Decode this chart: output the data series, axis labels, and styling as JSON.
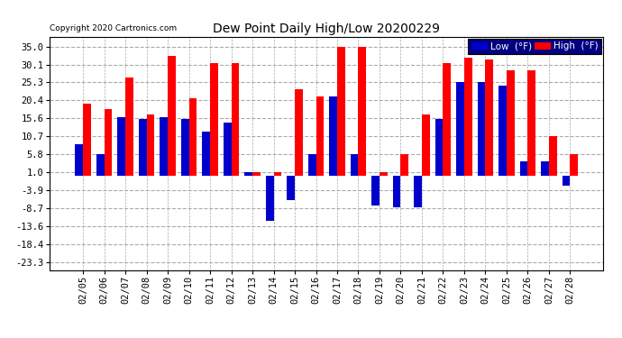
{
  "title": "Dew Point Daily High/Low 20200229",
  "copyright": "Copyright 2020 Cartronics.com",
  "dates": [
    "02/05",
    "02/06",
    "02/07",
    "02/08",
    "02/09",
    "02/10",
    "02/11",
    "02/12",
    "02/13",
    "02/14",
    "02/15",
    "02/16",
    "02/17",
    "02/18",
    "02/19",
    "02/20",
    "02/21",
    "02/22",
    "02/23",
    "02/24",
    "02/25",
    "02/26",
    "02/27",
    "02/28"
  ],
  "high": [
    19.5,
    18.0,
    26.5,
    16.5,
    32.5,
    21.0,
    30.5,
    30.5,
    1.0,
    1.0,
    23.5,
    21.5,
    35.0,
    35.0,
    1.0,
    5.8,
    16.5,
    30.5,
    32.0,
    31.5,
    28.5,
    28.5,
    10.7,
    5.8
  ],
  "low": [
    8.5,
    5.8,
    16.0,
    15.5,
    16.0,
    15.5,
    12.0,
    14.5,
    1.0,
    -12.0,
    -6.5,
    6.0,
    21.5,
    5.8,
    -8.0,
    -8.5,
    -8.5,
    15.5,
    25.3,
    25.3,
    24.3,
    3.9,
    3.9,
    -2.5
  ],
  "high_color": "#ff0000",
  "low_color": "#0000cc",
  "bg_color": "#ffffff",
  "plot_bg_color": "#ffffff",
  "grid_color": "#aaaaaa",
  "yticks": [
    35.0,
    30.1,
    25.3,
    20.4,
    15.6,
    10.7,
    5.8,
    1.0,
    -3.9,
    -8.7,
    -13.6,
    -18.4,
    -23.3
  ],
  "ylim": [
    -25.5,
    37.5
  ],
  "bar_width": 0.38
}
